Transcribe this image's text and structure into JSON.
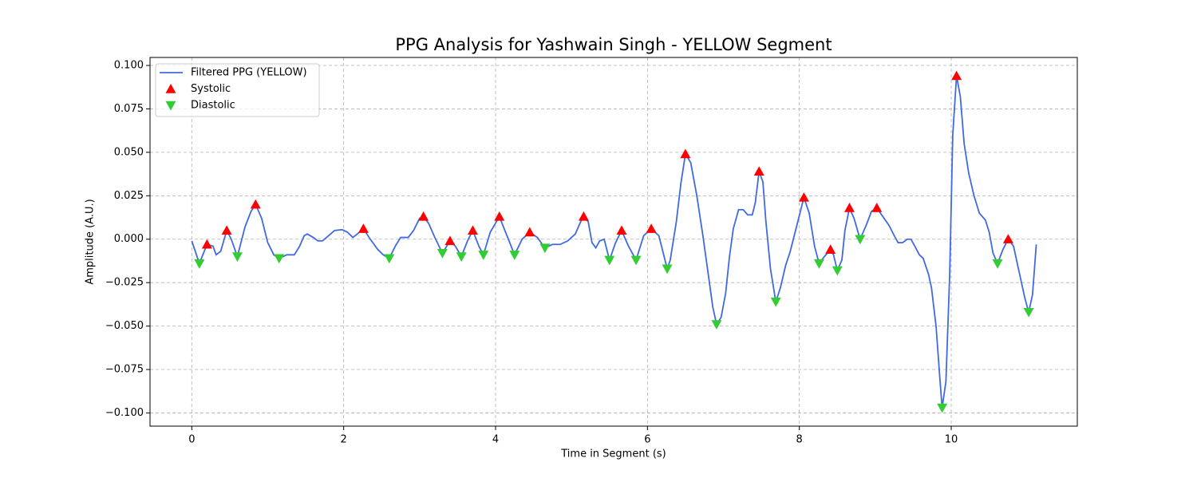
{
  "chart_data": {
    "type": "line",
    "title": "PPG Analysis for Yashwain Singh - YELLOW Segment",
    "x_label": "Time in Segment (s)",
    "y_label": "Amplitude (A.U.)",
    "xlim": [
      -0.55,
      11.66
    ],
    "ylim": [
      -0.1076,
      0.1046
    ],
    "xticks": [
      0,
      2,
      4,
      6,
      8,
      10
    ],
    "yticks": [
      {
        "value": 0.1,
        "label": "0.100"
      },
      {
        "value": 0.075,
        "label": "0.075"
      },
      {
        "value": 0.05,
        "label": "0.050"
      },
      {
        "value": 0.025,
        "label": "0.025"
      },
      {
        "value": 0,
        "label": "0.000"
      },
      {
        "value": -0.025,
        "label": "−0.025"
      },
      {
        "value": -0.05,
        "label": "−0.050"
      },
      {
        "value": -0.075,
        "label": "−0.075"
      },
      {
        "value": -0.1,
        "label": "−0.100"
      }
    ],
    "grid": true,
    "legend": "upper left",
    "series": [
      {
        "name": "Filtered PPG (YELLOW)",
        "kind": "line",
        "color": "#4169e1",
        "x": [
          0,
          0.1,
          0.2,
          0.28,
          0.32,
          0.38,
          0.46,
          0.52,
          0.6,
          0.7,
          0.78,
          0.84,
          0.92,
          1.0,
          1.08,
          1.15,
          1.25,
          1.35,
          1.42,
          1.48,
          1.52,
          1.6,
          1.66,
          1.72,
          1.8,
          1.88,
          1.98,
          2.05,
          2.12,
          2.18,
          2.26,
          2.35,
          2.45,
          2.52,
          2.6,
          2.68,
          2.75,
          2.85,
          2.92,
          3.0,
          3.05,
          3.12,
          3.2,
          3.3,
          3.4,
          3.47,
          3.55,
          3.63,
          3.7,
          3.78,
          3.84,
          3.93,
          4.05,
          4.15,
          4.25,
          4.35,
          4.45,
          4.55,
          4.65,
          4.75,
          4.85,
          4.95,
          5.05,
          5.12,
          5.16,
          5.22,
          5.27,
          5.32,
          5.37,
          5.43,
          5.5,
          5.58,
          5.66,
          5.75,
          5.85,
          5.95,
          6.05,
          6.15,
          6.26,
          6.3,
          6.38,
          6.44,
          6.5,
          6.57,
          6.65,
          6.73,
          6.8,
          6.86,
          6.91,
          6.97,
          7.03,
          7.08,
          7.13,
          7.2,
          7.26,
          7.32,
          7.38,
          7.42,
          7.47,
          7.52,
          7.56,
          7.62,
          7.69,
          7.75,
          7.82,
          7.88,
          7.95,
          8.06,
          8.13,
          8.2,
          8.26,
          8.33,
          8.41,
          8.45,
          8.5,
          8.56,
          8.6,
          8.66,
          8.72,
          8.8,
          8.88,
          8.95,
          9.02,
          9.1,
          9.18,
          9.25,
          9.3,
          9.36,
          9.42,
          9.47,
          9.52,
          9.58,
          9.63,
          9.7,
          9.74,
          9.8,
          9.85,
          9.88,
          9.93,
          9.98,
          10.02,
          10.07,
          10.12,
          10.17,
          10.23,
          10.3,
          10.37,
          10.45,
          10.5,
          10.55,
          10.61,
          10.68,
          10.75,
          10.82,
          10.9,
          10.97,
          11.02,
          11.07,
          11.12
        ],
        "values": [
          -0.001,
          -0.014,
          -0.003,
          -0.004,
          -0.009,
          -0.007,
          0.005,
          0.0,
          -0.01,
          0.007,
          0.016,
          0.02,
          0.012,
          -0.002,
          -0.009,
          -0.011,
          -0.009,
          -0.009,
          -0.004,
          0.002,
          0.003,
          0.001,
          -0.001,
          -0.001,
          0.002,
          0.005,
          0.0055,
          0.004,
          0.001,
          0.003,
          0.006,
          0.0,
          -0.006,
          -0.009,
          -0.011,
          -0.004,
          0.001,
          0.001,
          0.005,
          0.012,
          0.013,
          0.009,
          0.001,
          -0.008,
          -0.001,
          -0.004,
          -0.01,
          -0.001,
          0.005,
          -0.004,
          -0.009,
          0.004,
          0.013,
          0.002,
          -0.009,
          0.0,
          0.004,
          0.001,
          -0.005,
          -0.003,
          -0.003,
          -0.001,
          0.003,
          0.01,
          0.013,
          0.01,
          -0.002,
          -0.005,
          -0.001,
          0.0,
          -0.012,
          -0.002,
          0.005,
          -0.004,
          -0.012,
          0.002,
          0.006,
          0.002,
          -0.017,
          -0.012,
          0.01,
          0.032,
          0.049,
          0.044,
          0.025,
          0.002,
          -0.02,
          -0.039,
          -0.049,
          -0.045,
          -0.031,
          -0.01,
          0.006,
          0.017,
          0.017,
          0.014,
          0.014,
          0.021,
          0.039,
          0.033,
          0.01,
          -0.017,
          -0.036,
          -0.028,
          -0.015,
          -0.007,
          0.005,
          0.024,
          0.015,
          -0.004,
          -0.014,
          -0.01,
          -0.006,
          -0.009,
          -0.018,
          -0.012,
          0.005,
          0.018,
          0.012,
          0.0,
          0.008,
          0.016,
          0.018,
          0.013,
          0.008,
          0.002,
          -0.002,
          -0.002,
          0.0,
          0.0,
          -0.004,
          -0.009,
          -0.011,
          -0.02,
          -0.028,
          -0.05,
          -0.08,
          -0.097,
          -0.082,
          -0.02,
          0.06,
          0.094,
          0.082,
          0.055,
          0.038,
          0.025,
          0.015,
          0.011,
          0.004,
          -0.008,
          -0.014,
          -0.006,
          0.0,
          -0.004,
          -0.02,
          -0.034,
          -0.042,
          -0.032,
          -0.003
        ]
      },
      {
        "name": "Systolic",
        "kind": "up",
        "color": "#ff0000",
        "x": [
          0.2,
          0.46,
          0.84,
          2.26,
          3.05,
          3.4,
          3.7,
          4.05,
          4.45,
          5.16,
          5.66,
          6.05,
          6.5,
          7.47,
          8.06,
          8.41,
          8.66,
          9.02,
          10.07,
          10.75
        ],
        "values": [
          -0.003,
          0.005,
          0.02,
          0.006,
          0.013,
          -0.001,
          0.005,
          0.013,
          0.004,
          0.013,
          0.005,
          0.006,
          0.049,
          0.039,
          0.024,
          -0.006,
          0.018,
          0.018,
          0.094,
          0.0
        ]
      },
      {
        "name": "Diastolic",
        "kind": "down",
        "color": "#32cd32",
        "x": [
          0.1,
          0.6,
          1.15,
          2.6,
          3.3,
          3.55,
          3.84,
          4.25,
          4.65,
          5.5,
          5.85,
          6.26,
          6.91,
          7.69,
          8.26,
          8.5,
          8.8,
          9.88,
          10.61,
          11.02
        ],
        "values": [
          -0.014,
          -0.01,
          -0.011,
          -0.011,
          -0.008,
          -0.01,
          -0.009,
          -0.009,
          -0.005,
          -0.012,
          -0.012,
          -0.017,
          -0.049,
          -0.036,
          -0.014,
          -0.018,
          0.0,
          -0.097,
          -0.014,
          -0.042
        ]
      }
    ]
  }
}
